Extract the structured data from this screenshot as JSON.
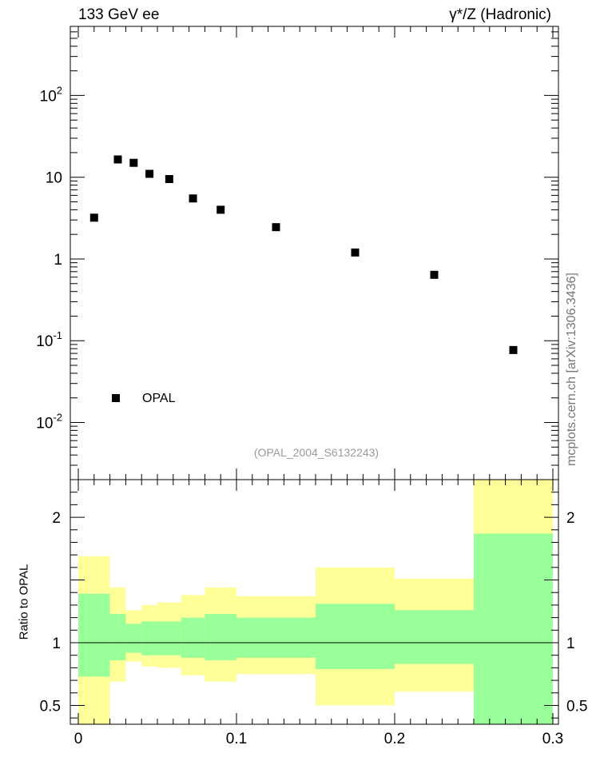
{
  "header": {
    "left": "133 GeV ee",
    "right": "γ*/Z (Hadronic)"
  },
  "side_label": "mcplots.cern.ch [arXiv:1306.3436]",
  "reference_label": "(OPAL_2004_S6132243)",
  "colors": {
    "marker": "#000000",
    "band_inner": "#99ff99",
    "band_outer": "#ffff99",
    "ref_line": "#000000",
    "side_label": "#777777",
    "ref_label": "#999999"
  },
  "chart_data": [
    {
      "type": "scatter",
      "yscale": "log",
      "xlim": [
        0,
        0.3
      ],
      "ylim": [
        0.002,
        700
      ],
      "ytick_labels": [
        {
          "value": 0.01,
          "base": "10",
          "exp": "-2"
        },
        {
          "value": 0.1,
          "base": "10",
          "exp": "-1"
        },
        {
          "value": 1,
          "base": "1",
          "exp": ""
        },
        {
          "value": 10,
          "base": "10",
          "exp": ""
        },
        {
          "value": 100,
          "base": "10",
          "exp": "2"
        }
      ],
      "series": [
        {
          "name": "OPAL",
          "marker": "square",
          "x": [
            0.01,
            0.025,
            0.035,
            0.045,
            0.0575,
            0.0725,
            0.09,
            0.125,
            0.175,
            0.225,
            0.275
          ],
          "y": [
            3.2,
            16.5,
            15.0,
            11.0,
            9.5,
            5.5,
            4.0,
            2.45,
            1.2,
            0.64,
            0.077
          ]
        }
      ],
      "legend": {
        "position": "bottom-left",
        "label": "OPAL"
      }
    },
    {
      "type": "area",
      "ylabel": "Ratio to OPAL",
      "xlim": [
        0,
        0.3
      ],
      "ylim": [
        0.35,
        2.3
      ],
      "xticks": [
        0,
        0.1,
        0.2,
        0.3
      ],
      "xtick_labels": [
        "0",
        "0.1",
        "0.2",
        "0.3"
      ],
      "yticks": [
        0.5,
        1,
        2
      ],
      "ytick_labels": [
        "0.5",
        "1",
        "2"
      ],
      "reference_line": 1,
      "bins": [
        {
          "x0": 0.0,
          "x1": 0.02,
          "inner": [
            0.73,
            1.39
          ],
          "outer": [
            0.35,
            1.69
          ]
        },
        {
          "x0": 0.02,
          "x1": 0.03,
          "inner": [
            0.86,
            1.23
          ],
          "outer": [
            0.69,
            1.44
          ]
        },
        {
          "x0": 0.03,
          "x1": 0.04,
          "inner": [
            0.92,
            1.15
          ],
          "outer": [
            0.85,
            1.26
          ]
        },
        {
          "x0": 0.04,
          "x1": 0.05,
          "inner": [
            0.9,
            1.17
          ],
          "outer": [
            0.81,
            1.3
          ]
        },
        {
          "x0": 0.05,
          "x1": 0.065,
          "inner": [
            0.9,
            1.17
          ],
          "outer": [
            0.8,
            1.32
          ]
        },
        {
          "x0": 0.065,
          "x1": 0.08,
          "inner": [
            0.88,
            1.2
          ],
          "outer": [
            0.74,
            1.38
          ]
        },
        {
          "x0": 0.08,
          "x1": 0.1,
          "inner": [
            0.86,
            1.23
          ],
          "outer": [
            0.69,
            1.44
          ]
        },
        {
          "x0": 0.1,
          "x1": 0.15,
          "inner": [
            0.88,
            1.2
          ],
          "outer": [
            0.75,
            1.37
          ]
        },
        {
          "x0": 0.15,
          "x1": 0.2,
          "inner": [
            0.79,
            1.31
          ],
          "outer": [
            0.5,
            1.6
          ]
        },
        {
          "x0": 0.2,
          "x1": 0.25,
          "inner": [
            0.83,
            1.26
          ],
          "outer": [
            0.61,
            1.51
          ]
        },
        {
          "x0": 0.25,
          "x1": 0.3,
          "inner": [
            0.35,
            1.87
          ],
          "outer": [
            0.35,
            2.3
          ]
        }
      ]
    }
  ]
}
